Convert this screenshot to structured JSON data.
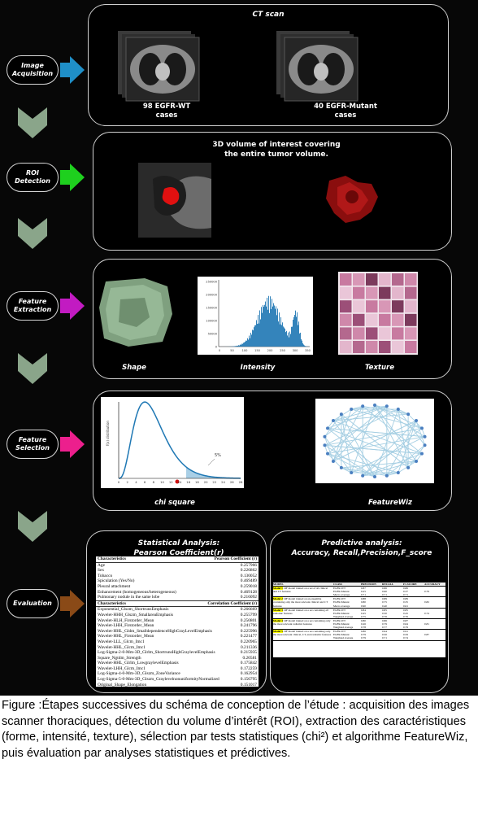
{
  "stages": [
    {
      "label": "Image\nAcquisition",
      "arrow_color": "#1f8fc8"
    },
    {
      "label": "ROI\nDetection",
      "arrow_color": "#1ed01e"
    },
    {
      "label": "Feature\nExtraction",
      "arrow_color": "#c21bc2"
    },
    {
      "label": "Feature\nSelection",
      "arrow_color": "#ec1f8d"
    },
    {
      "label": "Evaluation",
      "arrow_color": "#8a4a17"
    }
  ],
  "chevron_color": "#8aa58a",
  "ct": {
    "title": "CT scan",
    "wt": "98 EGFR-WT\ncases",
    "mut": "40 EGFR-Mutant\ncases"
  },
  "roi": {
    "title": "3D volume of interest covering\nthe entire tumor volume."
  },
  "extraction": {
    "shape": "Shape",
    "intensity": "Intensity",
    "texture": "Texture",
    "hist_yticks": [
      "250000",
      "200000",
      "150000",
      "100000",
      "50000",
      "0"
    ],
    "hist_xticks": [
      "0",
      "50",
      "100",
      "150",
      "200",
      "250",
      "300",
      "350"
    ]
  },
  "selection": {
    "chi": "chi square",
    "featurewiz": "FeatureWiz",
    "chi_pct": "5%",
    "chi_xticks": [
      "0",
      "2",
      "4",
      "6",
      "8",
      "10",
      "12",
      "14",
      "16",
      "18",
      "20",
      "22",
      "24",
      "26",
      "28"
    ],
    "chi_ylabel": "f(x) distribution"
  },
  "stat": {
    "title": "Statistical  Analysis:\nPearson Coefficient(r)",
    "head1": [
      "Characteristics",
      "Pearson Coefficient (r)"
    ],
    "rows1": [
      [
        "Age",
        "0.257966"
      ],
      [
        "Sex",
        "0.226862"
      ],
      [
        "Tobacco",
        "0.130052"
      ],
      [
        "Spiculation (Yes/No)",
        "0.469489"
      ],
      [
        "Pleural attachment",
        "0.259018"
      ],
      [
        "Enhancement (homogeneous/heterogeneous)",
        "0.469128"
      ],
      [
        "Pulmonary nodule in the same lobe",
        "0.216092"
      ]
    ],
    "head2": [
      "Characteristics",
      "Correlation Coefficient (r)"
    ],
    "rows2": [
      [
        "Exponential_Glszm_ShortrunsEmphasis",
        "0.266669"
      ],
      [
        "Wavelet-HHH_Glszm_SmallareaEmphasis",
        "0.255799"
      ],
      [
        "Wavelet-HLH_Firstorder_Mean",
        "0.250801"
      ],
      [
        "Wavelet-LHH_Firstorder_Mean",
        "0.241796"
      ],
      [
        "Wavelet-HHL_Gldm_SmalldependenceHighGrayLevelEmphasis",
        "0.225996"
      ],
      [
        "Wavelet-HHL_Firstorder_Mean",
        "0.221477"
      ],
      [
        "Wavelet-LLL_Glcm_Imc1",
        "0.220965"
      ],
      [
        "Wavelet-HHL_Glcm_Imc1",
        "0.211336"
      ],
      [
        "Log-Sigma-2-0-Mm-3D_Glrlm_ShortrunsHighGraylevelEmphasis",
        "0.215935"
      ],
      [
        "Square_Ngtdm_Strength",
        "0.20581"
      ],
      [
        "Wavelet-HHL_Glrlm_LowgraylevelEmphasis",
        "0.175842"
      ],
      [
        "Wavelet-LHH_Glcm_Imc1",
        "0.172259"
      ],
      [
        "Log-Sigma-4-0-Mm-3D_Glszm_ZoneVariance",
        "0.162954"
      ],
      [
        "Log-Sigma-5-0-Mm-3D_Glszm_GraylevelnonuniformityNormalized",
        "0.156795"
      ],
      [
        "Original_Shape_Elongation",
        "0.151017"
      ],
      [
        "Wavelet-LLH_Gldm_ShortrunsHighGraylevelEmphasis",
        "0.121732"
      ],
      [
        "Exponential_Firstorder_90Percentile",
        "0.112221"
      ],
      [
        "Wavelet-LLH_Glcm_Imc1",
        "0.117277"
      ],
      [
        "Wavelet-LHH_Glszm_SmallareaEmphasis",
        "0.112221"
      ],
      [
        "Wavelet-HHH_Glrlm_LowgraylevelEmphasis",
        "0.112967"
      ]
    ]
  },
  "pred": {
    "title": "Predictive analysis:\nAccuracy, Recall,Precision,F_score",
    "head": [
      "MODEL",
      "CLASS",
      "PRECISION",
      "RECALL",
      "F1-SCORE",
      "ACCURACY"
    ],
    "models": [
      {
        "name": "Model 1",
        "desc": ": RF model trained on a set of all clinical and CT features",
        "rows": [
          [
            "EGFR-WT",
            "0.87",
            "0.86",
            "0.86"
          ],
          [
            "EGFR-Mutant",
            "0.25",
            "0.60",
            "0.37"
          ],
          [
            "Macro average",
            "0.71",
            "0.71",
            "0.71"
          ]
        ],
        "acc": "0.79"
      },
      {
        "name": "Model 2",
        "desc": ": RF model trained on an ensemble containing only the most relevant clinical and CT features",
        "rows": [
          [
            "EGFR-WT",
            "0.88",
            "0.89",
            "0.89"
          ],
          [
            "EGFR-Mutant",
            "0.80",
            "0.75",
            "0.35"
          ],
          [
            "Macro average",
            "0.90",
            "0.40",
            "0.61"
          ]
        ],
        "acc": "0.82"
      },
      {
        "name": "Model 3",
        "desc": ": RF model trained on a set containing all radiomic features",
        "rows": [
          [
            "EGFR-WT",
            "0.84",
            "0.85",
            "0.85"
          ],
          [
            "EGFR-Mutant",
            "0.45",
            "0.50",
            "0.45"
          ],
          [
            "Weighted average",
            "0.75",
            "0.76",
            "0.76"
          ]
        ],
        "acc": "0.74"
      },
      {
        "name": "Model 4",
        "desc": ": RF model trained on a set containing only the most relevant radiomic features",
        "rows": [
          [
            "EGFR-WT",
            "0.80",
            "0.86",
            "0.87"
          ],
          [
            "EGFR-Mutant",
            "0.26",
            "0.79",
            "0.64"
          ],
          [
            "Weighted average",
            "0.78",
            "0.77",
            "0.79"
          ]
        ],
        "acc": "0.81"
      },
      {
        "name": "Model 5",
        "desc": ": RF model trained on a set containing only the most relevant clinical, CT, and radiomic features",
        "rows": [
          [
            "EGFR-WT",
            "0.86",
            "0.94",
            "0.91"
          ],
          [
            "EGFR-Mutant",
            "0.79",
            "0.50",
            "0.59"
          ],
          [
            "Weighted average",
            "0.79",
            "0.71",
            "0.74"
          ]
        ],
        "acc": "0.87"
      }
    ]
  },
  "caption": "Figure :Étapes successives du schéma de conception de l’étude : acquisition des images scanner thoraciques, détection du volume d’intérêt (ROI), extraction des caractéristiques (forme, intensité, texture), sélection par tests statistiques (chi²) et algorithme FeatureWiz, puis évaluation par analyses statistiques et prédictives."
}
